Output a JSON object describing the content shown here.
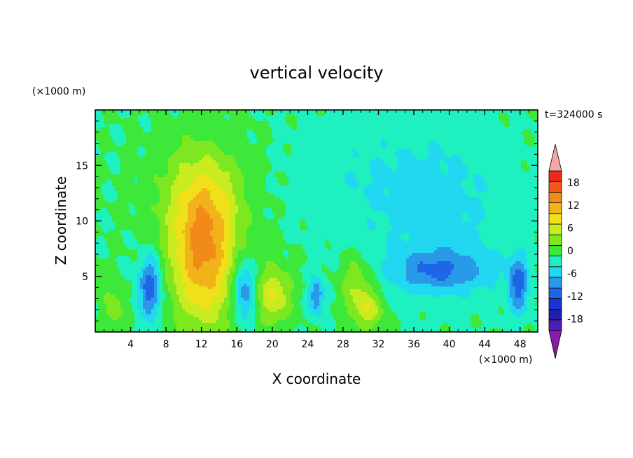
{
  "chart_data": {
    "type": "heatmap",
    "title": "vertical velocity",
    "xlabel": "X coordinate",
    "ylabel": "Z coordinate",
    "x_unit": "(×1000 m)",
    "y_unit": "(×1000 m)",
    "time_label": "t=324000 s",
    "xlim": [
      0,
      50
    ],
    "ylim": [
      0,
      20
    ],
    "x_ticks": [
      4,
      8,
      12,
      16,
      20,
      24,
      28,
      32,
      36,
      40,
      44,
      48
    ],
    "y_ticks": [
      5,
      10,
      15
    ],
    "x_tick_labels": [
      "4",
      "8",
      "12",
      "16",
      "20",
      "24",
      "28",
      "32",
      "36",
      "40",
      "44",
      "48"
    ],
    "y_tick_labels": [
      "5",
      "10",
      "15"
    ],
    "colorbar": {
      "tick_labels": [
        "18",
        "12",
        "6",
        "0",
        "-6",
        "-12",
        "-18"
      ],
      "levels": [
        -21,
        -18,
        -15,
        -12,
        -9,
        -6,
        -3,
        0,
        3,
        6,
        9,
        12,
        15,
        18,
        21
      ],
      "colors": [
        "#4b1fb5",
        "#1f1fa8",
        "#1a33d6",
        "#1f66e6",
        "#2a9ae8",
        "#22d8f0",
        "#1ef0c0",
        "#3ee83a",
        "#7de81f",
        "#c8ec1f",
        "#f0e01a",
        "#f2b21a",
        "#f28a1a",
        "#f0581a",
        "#ec2a1a"
      ],
      "under_color": "#8b1aa8",
      "over_color": "#f2a8a8",
      "extend": "both"
    },
    "features": [
      {
        "x": 12.2,
        "z": 7.0,
        "sx": 2.6,
        "sz": 4.6,
        "amp": 15
      },
      {
        "x": 12.0,
        "z": 12.5,
        "sx": 3.8,
        "sz": 3.5,
        "amp": 5
      },
      {
        "x": 20.2,
        "z": 3.3,
        "sx": 1.4,
        "sz": 1.8,
        "amp": 9
      },
      {
        "x": 29.5,
        "z": 4.2,
        "sx": 1.3,
        "sz": 2.0,
        "amp": 6
      },
      {
        "x": 31.0,
        "z": 2.0,
        "sx": 1.2,
        "sz": 1.2,
        "amp": 7
      },
      {
        "x": 2.2,
        "z": 2.0,
        "sx": 0.8,
        "sz": 1.2,
        "amp": 5
      },
      {
        "x": 0.6,
        "z": 4.5,
        "sx": 0.9,
        "sz": 1.0,
        "amp": 3
      },
      {
        "x": 6.2,
        "z": 4.0,
        "sx": 0.9,
        "sz": 2.0,
        "amp": -12
      },
      {
        "x": 16.8,
        "z": 3.8,
        "sx": 0.9,
        "sz": 2.0,
        "amp": -10
      },
      {
        "x": 25.0,
        "z": 3.2,
        "sx": 0.6,
        "sz": 1.2,
        "amp": -9
      },
      {
        "x": 39.0,
        "z": 5.5,
        "sx": 4.0,
        "sz": 1.3,
        "amp": -8
      },
      {
        "x": 47.8,
        "z": 4.2,
        "sx": 0.8,
        "sz": 1.8,
        "amp": -10
      },
      {
        "x": 39.0,
        "z": 11.0,
        "sx": 5.5,
        "sz": 5.0,
        "amp": -4
      },
      {
        "x": 30.0,
        "z": 14.0,
        "sx": 6.0,
        "sz": 4.0,
        "amp": -2
      }
    ]
  }
}
